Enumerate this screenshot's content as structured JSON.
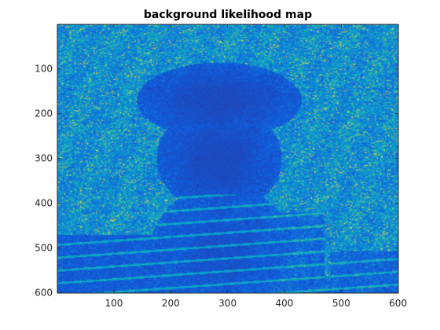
{
  "chart_data": {
    "type": "heatmap",
    "title": "background likelihood map",
    "xlabel": "",
    "ylabel": "",
    "xlim": [
      0.5,
      600.5
    ],
    "ylim": [
      0.5,
      600.5
    ],
    "y_direction": "reverse",
    "x_ticks": [
      100,
      200,
      300,
      400,
      500,
      600
    ],
    "y_ticks": [
      100,
      200,
      300,
      400,
      500,
      600
    ],
    "x_tick_labels": [
      "100",
      "200",
      "300",
      "400",
      "500",
      "600"
    ],
    "y_tick_labels": [
      "100",
      "200",
      "300",
      "400",
      "500",
      "600"
    ],
    "colormap": "parula",
    "colormap_stops": [
      "#352a87",
      "#0f5cdd",
      "#1481d6",
      "#06a4ca",
      "#2eb7a4",
      "#87bf77",
      "#d1bb59",
      "#fec832",
      "#f9fb0e"
    ],
    "background_color": "#352a87",
    "grid": false,
    "regions_low_likelihood": [
      "central object region from approximately x=150-420, y=100-250",
      "figure region from approximately x=180-390, y=250-600",
      "lower-left band from approximately x=1-230, y=470-600"
    ],
    "regions_high_likelihood": [
      "upper background band from approximately y=1-120 across most x",
      "left background from approximately x=1-190, y=120-470",
      "right background from approximately x=380-600, y=130-420"
    ]
  }
}
